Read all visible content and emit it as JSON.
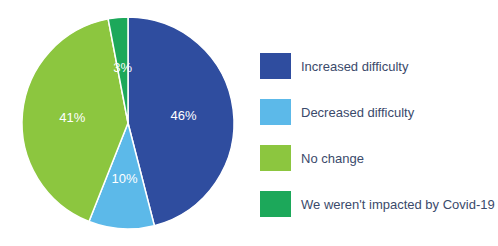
{
  "chart_data": {
    "type": "pie",
    "categories": [
      "Increased difficulty",
      "Decreased difficulty",
      "No change",
      "We weren't impacted by Covid-19"
    ],
    "values": [
      46,
      10,
      41,
      3
    ],
    "value_labels": [
      "46%",
      "10%",
      "41%",
      "3%"
    ],
    "colors": [
      "#2f4d9f",
      "#5cb9e9",
      "#8cc63f",
      "#1ca85a"
    ],
    "data_labels": true,
    "legend": "right"
  }
}
